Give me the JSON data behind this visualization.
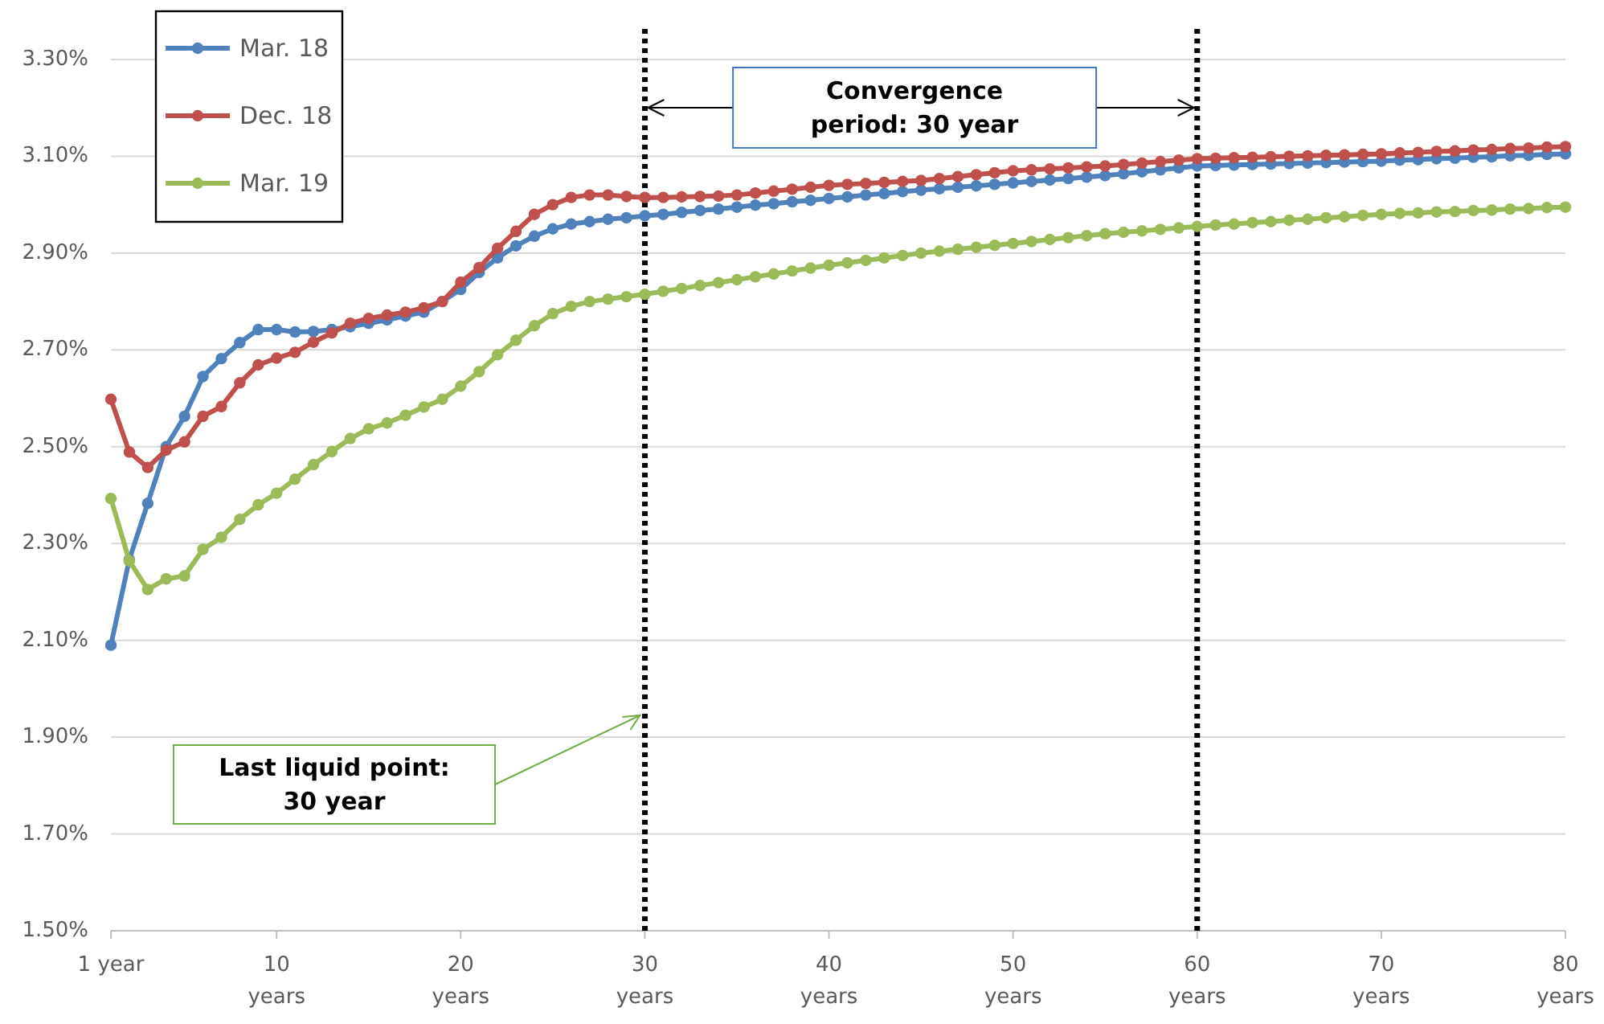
{
  "chart_data": {
    "type": "line",
    "x": [
      1,
      2,
      3,
      4,
      5,
      6,
      7,
      8,
      9,
      10,
      11,
      12,
      13,
      14,
      15,
      16,
      17,
      18,
      19,
      20,
      21,
      22,
      23,
      24,
      25,
      26,
      27,
      28,
      29,
      30,
      31,
      32,
      33,
      34,
      35,
      36,
      37,
      38,
      39,
      40,
      41,
      42,
      43,
      44,
      45,
      46,
      47,
      48,
      49,
      50,
      51,
      52,
      53,
      54,
      55,
      56,
      57,
      58,
      59,
      60,
      61,
      62,
      63,
      64,
      65,
      66,
      67,
      68,
      69,
      70,
      71,
      72,
      73,
      74,
      75,
      76,
      77,
      78,
      79,
      80
    ],
    "series": [
      {
        "name": "Mar. 18",
        "color": "#4f81bd",
        "values": [
          2.09,
          2.267,
          2.383,
          2.5,
          2.563,
          2.645,
          2.682,
          2.715,
          2.742,
          2.742,
          2.737,
          2.738,
          2.742,
          2.748,
          2.755,
          2.762,
          2.77,
          2.778,
          2.8,
          2.825,
          2.86,
          2.89,
          2.915,
          2.935,
          2.95,
          2.96,
          2.965,
          2.97,
          2.973,
          2.977,
          2.98,
          2.984,
          2.988,
          2.991,
          2.995,
          2.999,
          3.002,
          3.006,
          3.009,
          3.013,
          3.016,
          3.02,
          3.023,
          3.027,
          3.03,
          3.033,
          3.036,
          3.039,
          3.042,
          3.045,
          3.048,
          3.051,
          3.054,
          3.057,
          3.06,
          3.064,
          3.068,
          3.072,
          3.076,
          3.08,
          3.081,
          3.082,
          3.083,
          3.084,
          3.085,
          3.086,
          3.087,
          3.088,
          3.089,
          3.09,
          3.092,
          3.093,
          3.095,
          3.096,
          3.098,
          3.099,
          3.101,
          3.102,
          3.104,
          3.105
        ]
      },
      {
        "name": "Dec. 18",
        "color": "#c0504d",
        "values": [
          2.598,
          2.489,
          2.457,
          2.493,
          2.51,
          2.563,
          2.583,
          2.632,
          2.669,
          2.683,
          2.695,
          2.716,
          2.735,
          2.755,
          2.765,
          2.772,
          2.778,
          2.787,
          2.8,
          2.84,
          2.87,
          2.91,
          2.945,
          2.98,
          3.0,
          3.015,
          3.02,
          3.02,
          3.017,
          3.015,
          3.015,
          3.016,
          3.017,
          3.018,
          3.02,
          3.024,
          3.028,
          3.032,
          3.036,
          3.04,
          3.042,
          3.044,
          3.046,
          3.048,
          3.05,
          3.054,
          3.058,
          3.062,
          3.066,
          3.07,
          3.072,
          3.074,
          3.076,
          3.078,
          3.08,
          3.083,
          3.086,
          3.089,
          3.092,
          3.095,
          3.096,
          3.097,
          3.098,
          3.099,
          3.1,
          3.101,
          3.102,
          3.103,
          3.104,
          3.105,
          3.107,
          3.108,
          3.11,
          3.111,
          3.113,
          3.114,
          3.116,
          3.117,
          3.119,
          3.12
        ]
      },
      {
        "name": "Mar. 19",
        "color": "#9bbb59",
        "values": [
          2.393,
          2.264,
          2.205,
          2.227,
          2.233,
          2.288,
          2.313,
          2.35,
          2.38,
          2.404,
          2.433,
          2.463,
          2.49,
          2.517,
          2.537,
          2.549,
          2.565,
          2.582,
          2.598,
          2.625,
          2.655,
          2.69,
          2.72,
          2.75,
          2.775,
          2.79,
          2.8,
          2.805,
          2.81,
          2.815,
          2.821,
          2.827,
          2.833,
          2.839,
          2.845,
          2.851,
          2.857,
          2.863,
          2.869,
          2.875,
          2.88,
          2.885,
          2.89,
          2.895,
          2.9,
          2.904,
          2.908,
          2.912,
          2.916,
          2.92,
          2.924,
          2.928,
          2.932,
          2.936,
          2.94,
          2.943,
          2.946,
          2.949,
          2.952,
          2.955,
          2.958,
          2.96,
          2.963,
          2.965,
          2.968,
          2.97,
          2.973,
          2.975,
          2.978,
          2.98,
          2.982,
          2.983,
          2.985,
          2.986,
          2.988,
          2.989,
          2.991,
          2.992,
          2.994,
          2.995
        ]
      }
    ],
    "xlim": [
      1,
      80
    ],
    "xticks": [
      {
        "value": 1,
        "label": "1 year"
      },
      {
        "value": 10,
        "label": "10\nyears"
      },
      {
        "value": 20,
        "label": "20\nyears"
      },
      {
        "value": 30,
        "label": "30\nyears"
      },
      {
        "value": 40,
        "label": "40\nyears"
      },
      {
        "value": 50,
        "label": "50\nyears"
      },
      {
        "value": 60,
        "label": "60\nyears"
      },
      {
        "value": 70,
        "label": "70\nyears"
      },
      {
        "value": 80,
        "label": "80\nyears"
      }
    ],
    "ylim": [
      1.5,
      3.3
    ],
    "yticks": [
      {
        "value": 1.5,
        "label": "1.50%"
      },
      {
        "value": 1.7,
        "label": "1.70%"
      },
      {
        "value": 1.9,
        "label": "1.90%"
      },
      {
        "value": 2.1,
        "label": "2.10%"
      },
      {
        "value": 2.3,
        "label": "2.30%"
      },
      {
        "value": 2.5,
        "label": "2.50%"
      },
      {
        "value": 2.7,
        "label": "2.70%"
      },
      {
        "value": 2.9,
        "label": "2.90%"
      },
      {
        "value": 3.1,
        "label": "3.10%"
      },
      {
        "value": 3.3,
        "label": "3.30%"
      }
    ],
    "grid": "y",
    "legend": "top left",
    "marker": "circle",
    "line_style": "solid",
    "ref_lines": [
      {
        "axis": "x",
        "value": 30,
        "color": "#000000",
        "line_style": "dotted"
      },
      {
        "axis": "x",
        "value": 60,
        "color": "#000000",
        "line_style": "dotted"
      }
    ],
    "annotations": [
      "Convergence\nperiod: 30 year",
      "Last liquid point:\n30 year"
    ]
  }
}
